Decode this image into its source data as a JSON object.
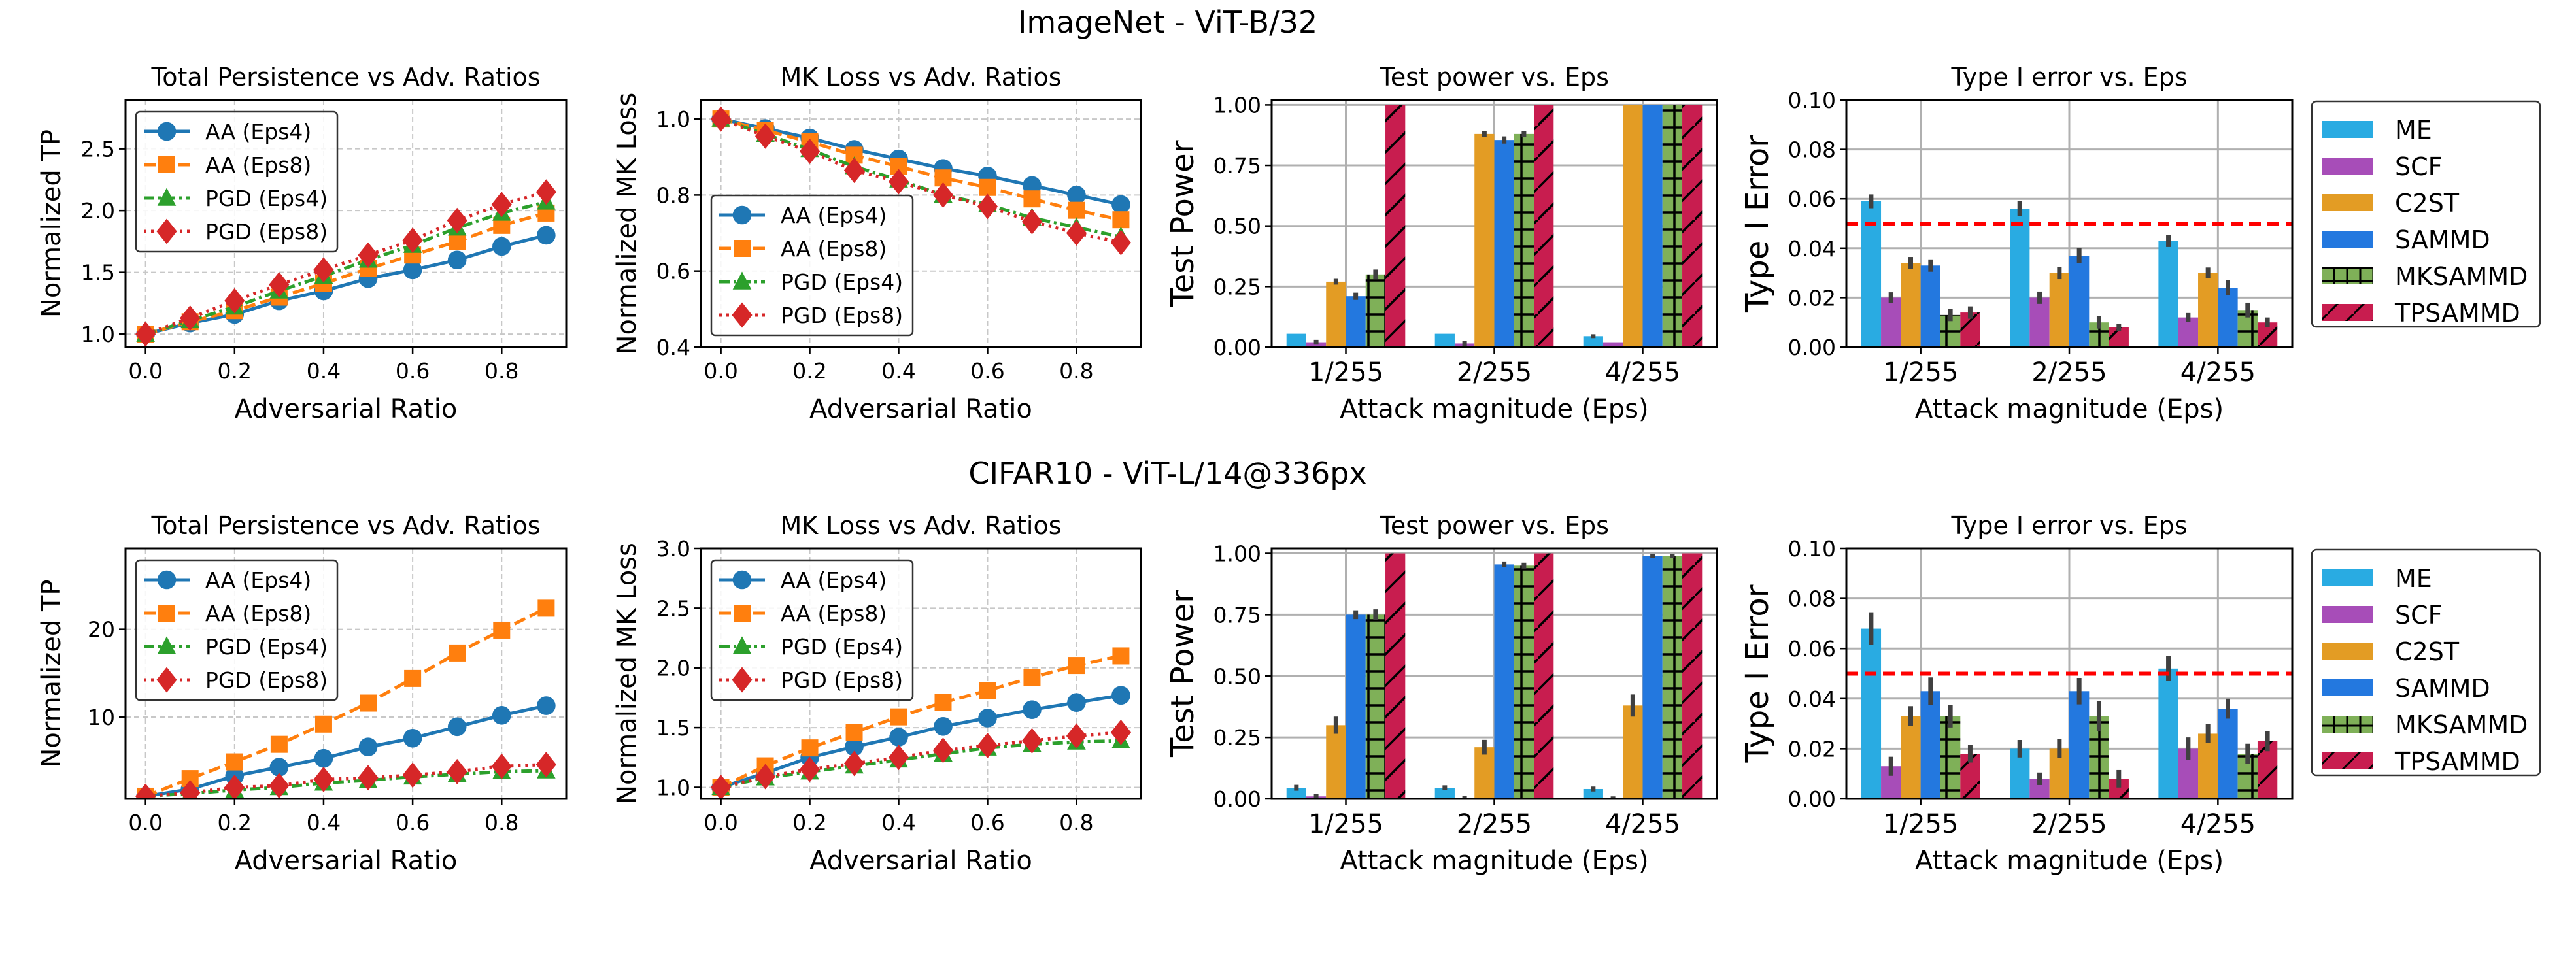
{
  "figure": {
    "rows": [
      {
        "suptitle": "ImageNet - ViT-B/32"
      },
      {
        "suptitle": "CIFAR10 - ViT-L/14@336px"
      }
    ]
  },
  "colors": {
    "AA (Eps4)": "#1f77b4",
    "AA (Eps8)": "#ff7f0e",
    "PGD (Eps4)": "#2ca02c",
    "PGD (Eps8)": "#d62728",
    "ME": "#29ABE2",
    "SCF": "#A74DB8",
    "C2ST": "#E39C24",
    "SAMMD": "#2378DF",
    "MKSAMMD": "#7FB058",
    "TPSAMMD": "#C81D4F",
    "errorbar": "#404040",
    "threshold": "#ff0000"
  },
  "bar_legend": {
    "entries": [
      {
        "label": "ME",
        "hatch": "none"
      },
      {
        "label": "SCF",
        "hatch": "none"
      },
      {
        "label": "C2ST",
        "hatch": "none"
      },
      {
        "label": "SAMMD",
        "hatch": "none"
      },
      {
        "label": "MKSAMMD",
        "hatch": "+"
      },
      {
        "label": "TPSAMMD",
        "hatch": "/"
      }
    ]
  },
  "chart_data": [
    {
      "id": "imagenet-tp",
      "row": 0,
      "col": 0,
      "type": "line",
      "title": "Total Persistence vs Adv. Ratios",
      "xlabel": "Adversarial Ratio",
      "ylabel": "Normalized TP",
      "xlim": [
        -0.045,
        0.945
      ],
      "ylim": [
        0.895,
        2.895
      ],
      "xticks": [
        0.0,
        0.2,
        0.4,
        0.6,
        0.8
      ],
      "xtick_labels": [
        "0.0",
        "0.2",
        "0.4",
        "0.6",
        "0.8"
      ],
      "yticks": [
        1.0,
        1.5,
        2.0,
        2.5
      ],
      "ytick_labels": [
        "1.0",
        "1.5",
        "2.0",
        "2.5"
      ],
      "grid": true,
      "legend": "upper-left",
      "x": [
        0.0,
        0.1,
        0.2,
        0.3,
        0.4,
        0.5,
        0.6,
        0.7,
        0.8,
        0.9
      ],
      "series": [
        {
          "name": "AA (Eps4)",
          "marker": "circle",
          "linestyle": "solid",
          "values": [
            1.0,
            1.09,
            1.16,
            1.27,
            1.35,
            1.45,
            1.52,
            1.6,
            1.71,
            1.8
          ]
        },
        {
          "name": "AA (Eps8)",
          "marker": "square",
          "linestyle": "dashed",
          "values": [
            1.0,
            1.1,
            1.19,
            1.3,
            1.41,
            1.53,
            1.64,
            1.75,
            1.88,
            1.98
          ]
        },
        {
          "name": "PGD (Eps4)",
          "marker": "triangle",
          "linestyle": "dashdot",
          "values": [
            1.0,
            1.11,
            1.22,
            1.35,
            1.47,
            1.6,
            1.72,
            1.86,
            1.98,
            2.07
          ]
        },
        {
          "name": "PGD (Eps8)",
          "marker": "diamond",
          "linestyle": "dotted",
          "values": [
            1.0,
            1.13,
            1.27,
            1.4,
            1.52,
            1.64,
            1.76,
            1.92,
            2.05,
            2.15
          ]
        }
      ]
    },
    {
      "id": "imagenet-mk",
      "row": 0,
      "col": 1,
      "type": "line",
      "title": "MK Loss vs Adv. Ratios",
      "xlabel": "Adversarial Ratio",
      "ylabel": "Normalized MK Loss",
      "xlim": [
        -0.045,
        0.945
      ],
      "ylim": [
        0.4,
        1.05
      ],
      "xticks": [
        0.0,
        0.2,
        0.4,
        0.6,
        0.8
      ],
      "xtick_labels": [
        "0.0",
        "0.2",
        "0.4",
        "0.6",
        "0.8"
      ],
      "yticks": [
        0.4,
        0.6,
        0.8,
        1.0
      ],
      "ytick_labels": [
        "0.4",
        "0.6",
        "0.8",
        "1.0"
      ],
      "grid": true,
      "legend": "lower-left",
      "x": [
        0.0,
        0.1,
        0.2,
        0.3,
        0.4,
        0.5,
        0.6,
        0.7,
        0.8,
        0.9
      ],
      "series": [
        {
          "name": "AA (Eps4)",
          "marker": "circle",
          "linestyle": "solid",
          "values": [
            1.0,
            0.975,
            0.95,
            0.92,
            0.895,
            0.87,
            0.85,
            0.825,
            0.8,
            0.775
          ]
        },
        {
          "name": "AA (Eps8)",
          "marker": "square",
          "linestyle": "dashed",
          "values": [
            1.0,
            0.97,
            0.94,
            0.905,
            0.875,
            0.845,
            0.82,
            0.79,
            0.76,
            0.735
          ]
        },
        {
          "name": "PGD (Eps4)",
          "marker": "triangle",
          "linestyle": "dashdot",
          "values": [
            1.0,
            0.96,
            0.92,
            0.875,
            0.84,
            0.8,
            0.775,
            0.74,
            0.715,
            0.69
          ]
        },
        {
          "name": "PGD (Eps8)",
          "marker": "diamond",
          "linestyle": "dotted",
          "values": [
            1.0,
            0.955,
            0.915,
            0.865,
            0.835,
            0.8,
            0.77,
            0.73,
            0.7,
            0.675
          ]
        }
      ]
    },
    {
      "id": "imagenet-power",
      "row": 0,
      "col": 2,
      "type": "bar",
      "title": "Test power vs. Eps",
      "xlabel": "Attack magnitude (Eps)",
      "ylabel": "Test Power",
      "ylim": [
        0,
        1.02
      ],
      "yticks": [
        0.0,
        0.25,
        0.5,
        0.75,
        1.0
      ],
      "ytick_labels": [
        "0.00",
        "0.25",
        "0.50",
        "0.75",
        "1.00"
      ],
      "grid": true,
      "categories": [
        "1/255",
        "2/255",
        "4/255"
      ],
      "series": [
        {
          "name": "ME",
          "values": [
            0.055,
            0.055,
            0.045
          ],
          "errors": [
            0.0,
            0.0,
            0.008
          ]
        },
        {
          "name": "SCF",
          "values": [
            0.02,
            0.015,
            0.02
          ],
          "errors": [
            0.01,
            0.01,
            0.0
          ]
        },
        {
          "name": "C2ST",
          "values": [
            0.27,
            0.88,
            1.0
          ],
          "errors": [
            0.012,
            0.012,
            0.0
          ]
        },
        {
          "name": "SAMMD",
          "values": [
            0.21,
            0.855,
            1.0
          ],
          "errors": [
            0.015,
            0.015,
            0.0
          ]
        },
        {
          "name": "MKSAMMD",
          "values": [
            0.3,
            0.88,
            1.0
          ],
          "errors": [
            0.02,
            0.012,
            0.0
          ]
        },
        {
          "name": "TPSAMMD",
          "values": [
            1.0,
            1.0,
            1.0
          ],
          "errors": [
            0.0,
            0.0,
            0.0
          ]
        }
      ]
    },
    {
      "id": "imagenet-type1",
      "row": 0,
      "col": 3,
      "type": "bar",
      "title": "Type I error vs. Eps",
      "xlabel": "Attack magnitude (Eps)",
      "ylabel": "Type I Error",
      "ylim": [
        0,
        0.1
      ],
      "yticks": [
        0.0,
        0.02,
        0.04,
        0.06,
        0.08,
        0.1
      ],
      "ytick_labels": [
        "0.00",
        "0.02",
        "0.04",
        "0.06",
        "0.08",
        "0.10"
      ],
      "grid": true,
      "threshold": 0.05,
      "categories": [
        "1/255",
        "2/255",
        "4/255"
      ],
      "series": [
        {
          "name": "ME",
          "values": [
            0.059,
            0.056,
            0.043
          ],
          "errors": [
            0.0028,
            0.003,
            0.0025
          ]
        },
        {
          "name": "SCF",
          "values": [
            0.02,
            0.02,
            0.012
          ],
          "errors": [
            0.0022,
            0.0025,
            0.0018
          ]
        },
        {
          "name": "C2ST",
          "values": [
            0.034,
            0.03,
            0.03
          ],
          "errors": [
            0.0025,
            0.0025,
            0.0022
          ]
        },
        {
          "name": "SAMMD",
          "values": [
            0.033,
            0.037,
            0.024
          ],
          "errors": [
            0.0025,
            0.003,
            0.003
          ]
        },
        {
          "name": "MKSAMMD",
          "values": [
            0.013,
            0.01,
            0.015
          ],
          "errors": [
            0.0025,
            0.0025,
            0.003
          ]
        },
        {
          "name": "TPSAMMD",
          "values": [
            0.014,
            0.008,
            0.01
          ],
          "errors": [
            0.0025,
            0.0015,
            0.002
          ]
        }
      ]
    },
    {
      "id": "cifar-tp",
      "row": 1,
      "col": 0,
      "type": "line",
      "title": "Total Persistence vs Adv. Ratios",
      "xlabel": "Adversarial Ratio",
      "ylabel": "Normalized TP",
      "xlim": [
        -0.045,
        0.945
      ],
      "ylim": [
        0.7,
        29.2
      ],
      "xticks": [
        0.0,
        0.2,
        0.4,
        0.6,
        0.8
      ],
      "xtick_labels": [
        "0.0",
        "0.2",
        "0.4",
        "0.6",
        "0.8"
      ],
      "yticks": [
        10,
        20
      ],
      "ytick_labels": [
        "10",
        "20"
      ],
      "grid": true,
      "legend": "upper-left",
      "x": [
        0.0,
        0.1,
        0.2,
        0.3,
        0.4,
        0.5,
        0.6,
        0.7,
        0.8,
        0.9
      ],
      "series": [
        {
          "name": "AA (Eps4)",
          "marker": "circle",
          "linestyle": "solid",
          "values": [
            1.0,
            1.8,
            3.3,
            4.3,
            5.3,
            6.6,
            7.6,
            8.9,
            10.2,
            11.3
          ]
        },
        {
          "name": "AA (Eps8)",
          "marker": "square",
          "linestyle": "dashed",
          "values": [
            1.0,
            3.0,
            4.9,
            6.9,
            9.2,
            11.6,
            14.4,
            17.3,
            19.9,
            22.4
          ]
        },
        {
          "name": "PGD (Eps4)",
          "marker": "triangle",
          "linestyle": "dashdot",
          "values": [
            1.0,
            1.3,
            1.7,
            2.0,
            2.5,
            2.8,
            3.2,
            3.5,
            3.8,
            3.9
          ]
        },
        {
          "name": "PGD (Eps8)",
          "marker": "diamond",
          "linestyle": "dotted",
          "values": [
            1.0,
            1.4,
            2.0,
            2.2,
            2.9,
            3.1,
            3.4,
            3.8,
            4.4,
            4.6
          ]
        }
      ]
    },
    {
      "id": "cifar-mk",
      "row": 1,
      "col": 1,
      "type": "line",
      "title": "MK Loss vs Adv. Ratios",
      "xlabel": "Adversarial Ratio",
      "ylabel": "Normalized MK Loss",
      "xlim": [
        -0.045,
        0.945
      ],
      "ylim": [
        0.904,
        3.0
      ],
      "xticks": [
        0.0,
        0.2,
        0.4,
        0.6,
        0.8
      ],
      "xtick_labels": [
        "0.0",
        "0.2",
        "0.4",
        "0.6",
        "0.8"
      ],
      "yticks": [
        1.0,
        1.5,
        2.0,
        2.5,
        3.0
      ],
      "ytick_labels": [
        "1.0",
        "1.5",
        "2.0",
        "2.5",
        "3.0"
      ],
      "grid": true,
      "legend": "upper-left",
      "x": [
        0.0,
        0.1,
        0.2,
        0.3,
        0.4,
        0.5,
        0.6,
        0.7,
        0.8,
        0.9
      ],
      "series": [
        {
          "name": "AA (Eps4)",
          "marker": "circle",
          "linestyle": "solid",
          "values": [
            1.0,
            1.12,
            1.25,
            1.34,
            1.42,
            1.51,
            1.58,
            1.65,
            1.71,
            1.77
          ]
        },
        {
          "name": "AA (Eps8)",
          "marker": "square",
          "linestyle": "dashed",
          "values": [
            1.0,
            1.18,
            1.33,
            1.46,
            1.59,
            1.71,
            1.81,
            1.92,
            2.02,
            2.1
          ]
        },
        {
          "name": "PGD (Eps4)",
          "marker": "triangle",
          "linestyle": "dashdot",
          "values": [
            1.0,
            1.08,
            1.13,
            1.18,
            1.23,
            1.28,
            1.33,
            1.36,
            1.38,
            1.39
          ]
        },
        {
          "name": "PGD (Eps8)",
          "marker": "diamond",
          "linestyle": "dotted",
          "values": [
            1.0,
            1.09,
            1.15,
            1.2,
            1.25,
            1.31,
            1.35,
            1.39,
            1.43,
            1.46
          ]
        }
      ]
    },
    {
      "id": "cifar-power",
      "row": 1,
      "col": 2,
      "type": "bar",
      "title": "Test power vs. Eps",
      "xlabel": "Attack magnitude (Eps)",
      "ylabel": "Test Power",
      "ylim": [
        0,
        1.02
      ],
      "yticks": [
        0.0,
        0.25,
        0.5,
        0.75,
        1.0
      ],
      "ytick_labels": [
        "0.00",
        "0.25",
        "0.50",
        "0.75",
        "1.00"
      ],
      "grid": true,
      "categories": [
        "1/255",
        "2/255",
        "4/255"
      ],
      "series": [
        {
          "name": "ME",
          "values": [
            0.045,
            0.045,
            0.04
          ],
          "errors": [
            0.012,
            0.01,
            0.01
          ]
        },
        {
          "name": "SCF",
          "values": [
            0.01,
            0.005,
            0.005
          ],
          "errors": [
            0.01,
            0.008,
            0.005
          ]
        },
        {
          "name": "C2ST",
          "values": [
            0.3,
            0.21,
            0.38
          ],
          "errors": [
            0.035,
            0.03,
            0.045
          ]
        },
        {
          "name": "SAMMD",
          "values": [
            0.75,
            0.955,
            0.99
          ],
          "errors": [
            0.018,
            0.012,
            0.008
          ]
        },
        {
          "name": "MKSAMMD",
          "values": [
            0.75,
            0.95,
            0.99
          ],
          "errors": [
            0.022,
            0.012,
            0.008
          ]
        },
        {
          "name": "TPSAMMD",
          "values": [
            1.0,
            1.0,
            1.0
          ],
          "errors": [
            0.0,
            0.0,
            0.0
          ]
        }
      ]
    },
    {
      "id": "cifar-type1",
      "row": 1,
      "col": 3,
      "type": "bar",
      "title": "Type I error vs. Eps",
      "xlabel": "Attack magnitude (Eps)",
      "ylabel": "Type I Error",
      "ylim": [
        0,
        0.1
      ],
      "yticks": [
        0.0,
        0.02,
        0.04,
        0.06,
        0.08,
        0.1
      ],
      "ytick_labels": [
        "0.00",
        "0.02",
        "0.04",
        "0.06",
        "0.08",
        "0.10"
      ],
      "grid": true,
      "threshold": 0.05,
      "categories": [
        "1/255",
        "2/255",
        "4/255"
      ],
      "series": [
        {
          "name": "ME",
          "values": [
            0.068,
            0.02,
            0.052
          ],
          "errors": [
            0.0065,
            0.0035,
            0.005
          ]
        },
        {
          "name": "SCF",
          "values": [
            0.013,
            0.008,
            0.02
          ],
          "errors": [
            0.0038,
            0.0025,
            0.0045
          ]
        },
        {
          "name": "C2ST",
          "values": [
            0.033,
            0.02,
            0.026
          ],
          "errors": [
            0.004,
            0.0038,
            0.0038
          ]
        },
        {
          "name": "SAMMD",
          "values": [
            0.043,
            0.043,
            0.036
          ],
          "errors": [
            0.0055,
            0.0053,
            0.004
          ]
        },
        {
          "name": "MKSAMMD",
          "values": [
            0.033,
            0.033,
            0.018
          ],
          "errors": [
            0.0045,
            0.006,
            0.004
          ]
        },
        {
          "name": "TPSAMMD",
          "values": [
            0.018,
            0.008,
            0.023
          ],
          "errors": [
            0.0035,
            0.0035,
            0.004
          ]
        }
      ]
    }
  ]
}
